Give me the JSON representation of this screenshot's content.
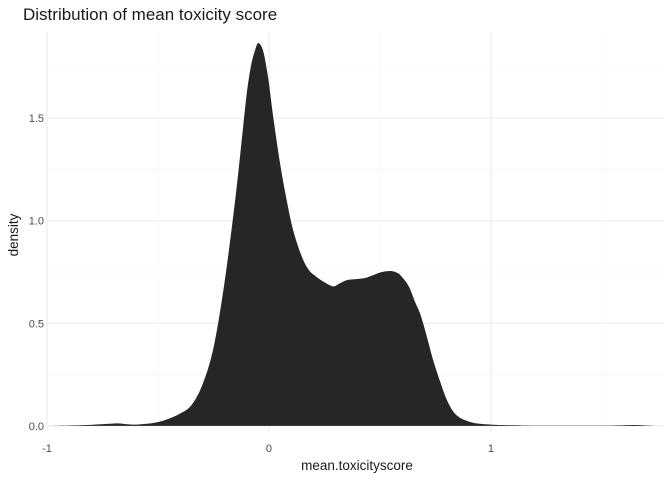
{
  "chart_data": {
    "type": "area",
    "title": "Distribution of mean toxicity score",
    "xlabel": "mean.toxicityscore",
    "ylabel": "density",
    "xlim": [
      -1.0,
      1.78
    ],
    "ylim": [
      -0.03,
      1.92
    ],
    "x_ticks": [
      -1,
      0,
      1
    ],
    "y_ticks": [
      0.0,
      0.5,
      1.0,
      1.5
    ],
    "x_tick_labels": [
      "-1",
      "0",
      "1"
    ],
    "y_tick_labels": [
      "0.0",
      "0.5",
      "1.0",
      "1.5"
    ],
    "grid": true,
    "fill_color": "#262626",
    "series": [
      {
        "x": [
          -1.0,
          -0.9,
          -0.8,
          -0.72,
          -0.68,
          -0.64,
          -0.6,
          -0.55,
          -0.5,
          -0.45,
          -0.4,
          -0.35,
          -0.3,
          -0.25,
          -0.2,
          -0.15,
          -0.12,
          -0.1,
          -0.08,
          -0.06,
          -0.05,
          -0.04,
          -0.03,
          -0.02,
          -0.01,
          0.0,
          0.02,
          0.05,
          0.08,
          0.11,
          0.15,
          0.18,
          0.21,
          0.25,
          0.29,
          0.32,
          0.35,
          0.39,
          0.43,
          0.47,
          0.51,
          0.55,
          0.58,
          0.6,
          0.63,
          0.66,
          0.68,
          0.7,
          0.72,
          0.74,
          0.77,
          0.8,
          0.83,
          0.86,
          0.89,
          0.92,
          0.95,
          1.0,
          1.05,
          1.15,
          1.3,
          1.5,
          1.6,
          1.65,
          1.7,
          1.75
        ],
        "y": [
          0.0,
          0.002,
          0.005,
          0.01,
          0.012,
          0.008,
          0.006,
          0.01,
          0.018,
          0.035,
          0.06,
          0.1,
          0.2,
          0.38,
          0.7,
          1.12,
          1.42,
          1.62,
          1.76,
          1.84,
          1.865,
          1.86,
          1.84,
          1.8,
          1.74,
          1.67,
          1.5,
          1.28,
          1.1,
          0.95,
          0.82,
          0.76,
          0.73,
          0.7,
          0.68,
          0.695,
          0.71,
          0.715,
          0.72,
          0.735,
          0.75,
          0.755,
          0.745,
          0.725,
          0.68,
          0.6,
          0.55,
          0.48,
          0.4,
          0.32,
          0.22,
          0.13,
          0.07,
          0.04,
          0.025,
          0.015,
          0.01,
          0.006,
          0.004,
          0.002,
          0.001,
          0.001,
          0.003,
          0.004,
          0.002,
          0.0
        ]
      }
    ]
  }
}
